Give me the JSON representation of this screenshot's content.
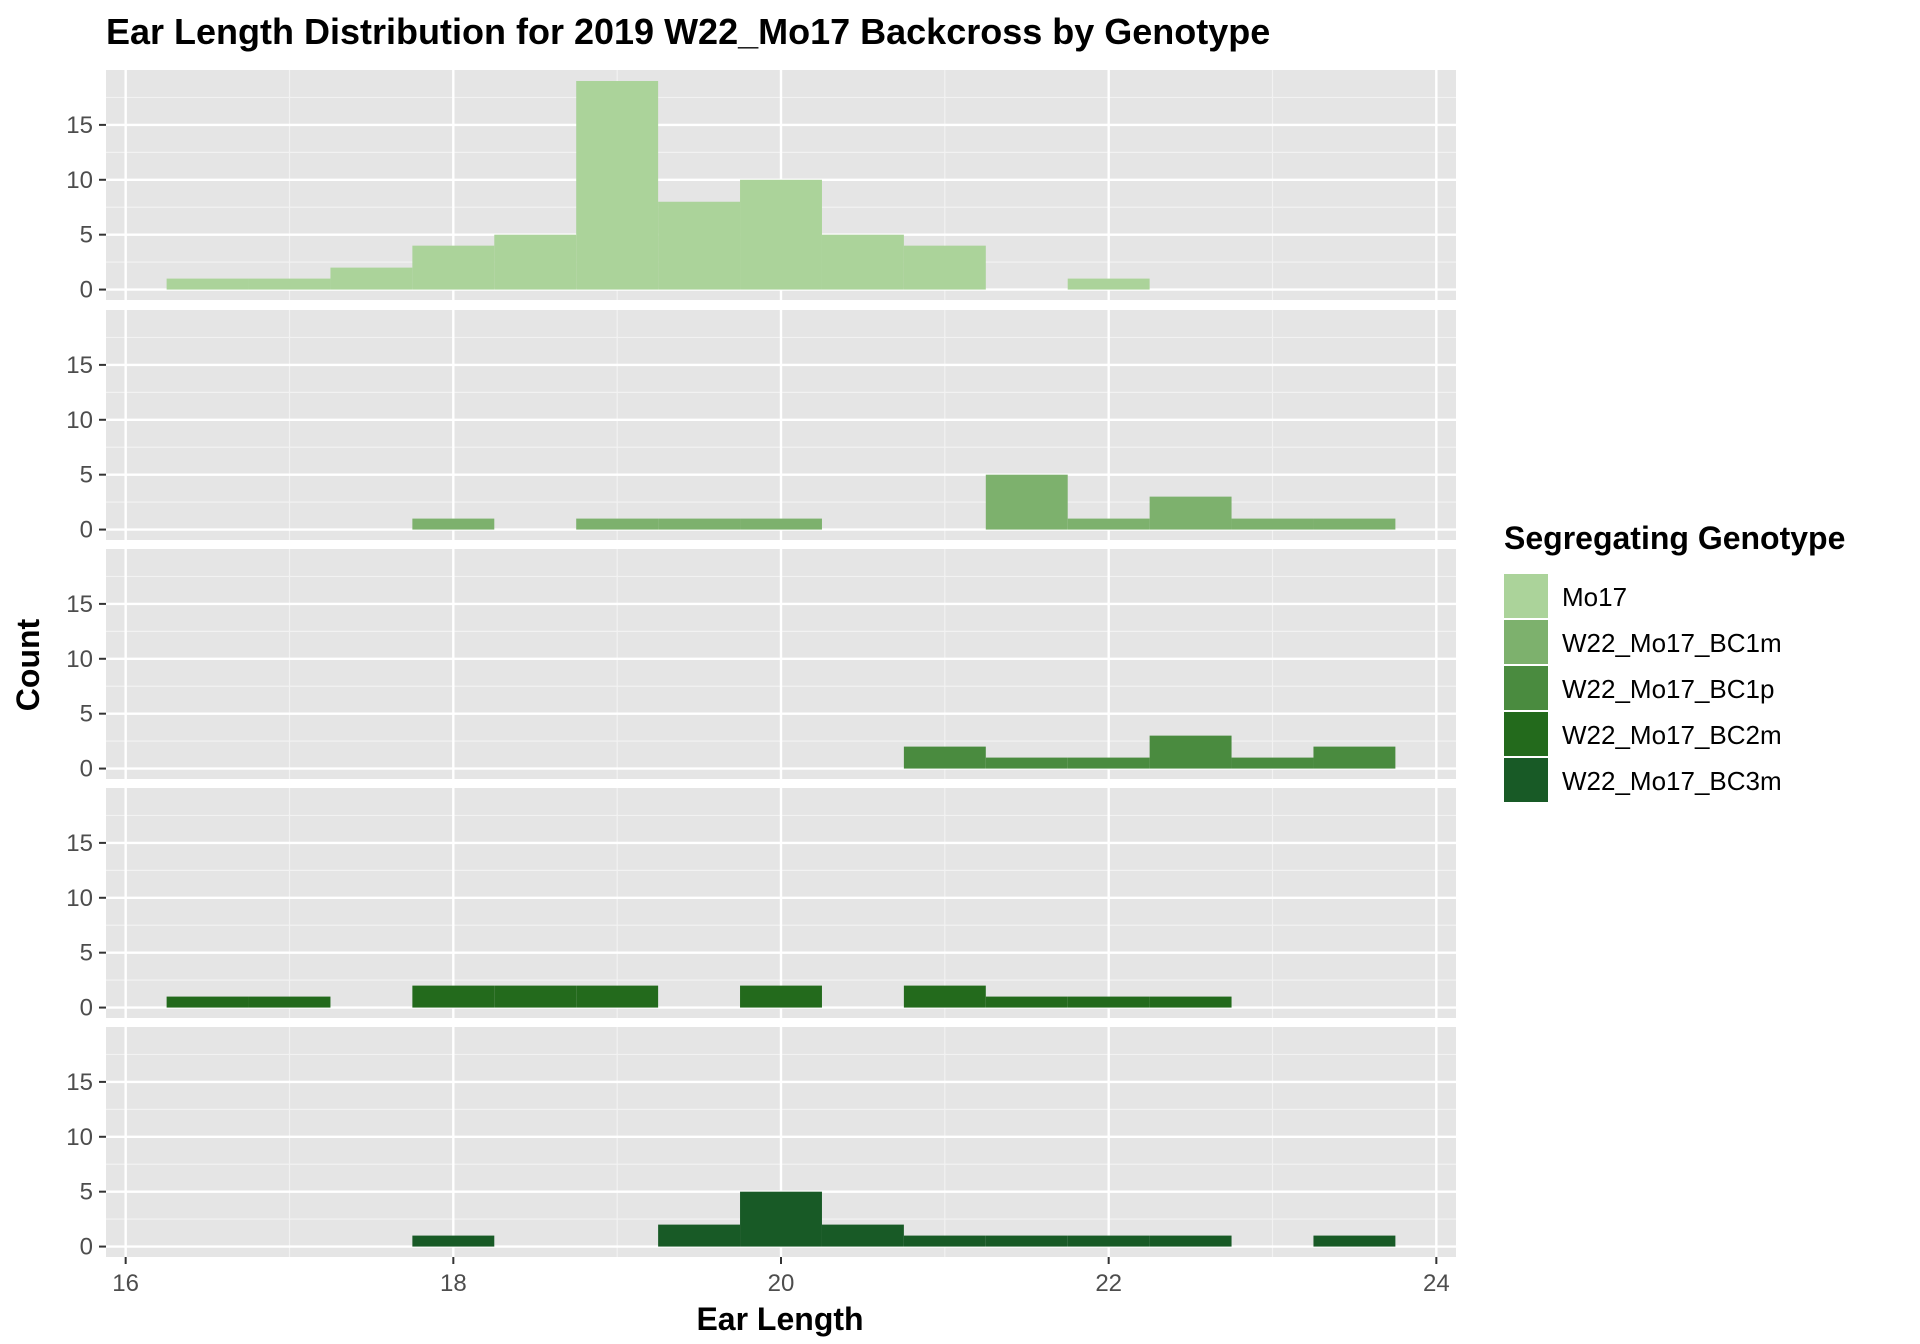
{
  "chart_data": {
    "type": "bar",
    "title": "Ear Length Distribution for 2019 W22_Mo17 Backcross by Genotype",
    "xlabel": "Ear Length",
    "ylabel": "Count",
    "xlim": [
      15.88,
      24.12
    ],
    "ylim": [
      -0.95,
      20.0
    ],
    "xticks": [
      16,
      18,
      20,
      22,
      24
    ],
    "yticks": [
      0,
      5,
      10,
      15
    ],
    "bin_width": 0.5,
    "grid": true,
    "legend_position": "right",
    "legend_title": "Segregating Genotype",
    "series": [
      {
        "name": "Mo17",
        "color": "#abd39a",
        "bins": [
          {
            "x": 16.5,
            "count": 1
          },
          {
            "x": 17.0,
            "count": 1
          },
          {
            "x": 17.5,
            "count": 2
          },
          {
            "x": 18.0,
            "count": 4
          },
          {
            "x": 18.5,
            "count": 5
          },
          {
            "x": 19.0,
            "count": 19
          },
          {
            "x": 19.5,
            "count": 8
          },
          {
            "x": 20.0,
            "count": 10
          },
          {
            "x": 20.5,
            "count": 5
          },
          {
            "x": 21.0,
            "count": 4
          },
          {
            "x": 22.0,
            "count": 1
          }
        ]
      },
      {
        "name": "W22_Mo17_BC1m",
        "color": "#7db16d",
        "bins": [
          {
            "x": 18.0,
            "count": 1
          },
          {
            "x": 19.0,
            "count": 1
          },
          {
            "x": 19.5,
            "count": 1
          },
          {
            "x": 20.0,
            "count": 1
          },
          {
            "x": 21.5,
            "count": 5
          },
          {
            "x": 22.0,
            "count": 1
          },
          {
            "x": 22.5,
            "count": 3
          },
          {
            "x": 23.0,
            "count": 1
          },
          {
            "x": 23.5,
            "count": 1
          }
        ]
      },
      {
        "name": "W22_Mo17_BC1p",
        "color": "#4a8b3f",
        "bins": [
          {
            "x": 21.0,
            "count": 2
          },
          {
            "x": 21.5,
            "count": 1
          },
          {
            "x": 22.0,
            "count": 1
          },
          {
            "x": 22.5,
            "count": 3
          },
          {
            "x": 23.0,
            "count": 1
          },
          {
            "x": 23.5,
            "count": 2
          }
        ]
      },
      {
        "name": "W22_Mo17_BC2m",
        "color": "#236a1c",
        "bins": [
          {
            "x": 16.5,
            "count": 1
          },
          {
            "x": 17.0,
            "count": 1
          },
          {
            "x": 18.0,
            "count": 2
          },
          {
            "x": 18.5,
            "count": 2
          },
          {
            "x": 19.0,
            "count": 2
          },
          {
            "x": 20.0,
            "count": 2
          },
          {
            "x": 21.0,
            "count": 2
          },
          {
            "x": 21.5,
            "count": 1
          },
          {
            "x": 22.0,
            "count": 1
          },
          {
            "x": 22.5,
            "count": 1
          }
        ]
      },
      {
        "name": "W22_Mo17_BC3m",
        "color": "#185a26",
        "bins": [
          {
            "x": 18.0,
            "count": 1
          },
          {
            "x": 19.5,
            "count": 2
          },
          {
            "x": 20.0,
            "count": 5
          },
          {
            "x": 20.5,
            "count": 2
          },
          {
            "x": 21.0,
            "count": 1
          },
          {
            "x": 21.5,
            "count": 1
          },
          {
            "x": 22.0,
            "count": 1
          },
          {
            "x": 22.5,
            "count": 1
          },
          {
            "x": 23.5,
            "count": 1
          }
        ]
      }
    ]
  },
  "colors": {
    "panel_background": "#e5e5e5",
    "grid_major": "#ffffff",
    "grid_minor": "#f2f2f2",
    "tick_text": "#4d4d4d"
  }
}
